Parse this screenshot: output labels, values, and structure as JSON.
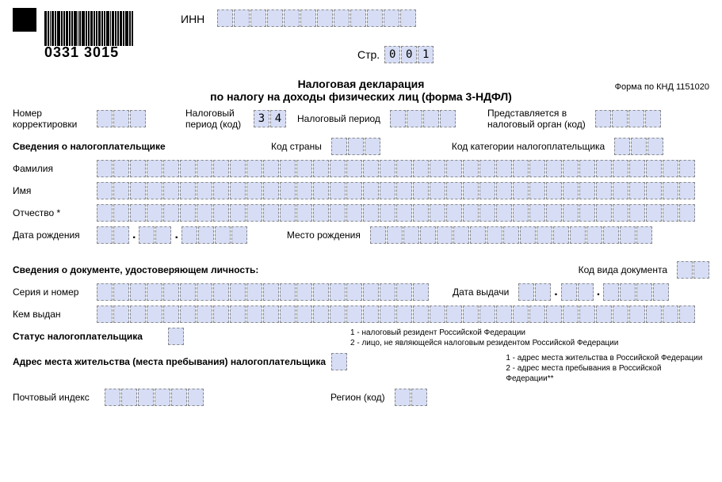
{
  "colors": {
    "cell_bg": "#d6ddf5",
    "cell_border": "#888888",
    "text": "#000000",
    "bg": "#ffffff"
  },
  "barcode": {
    "number": "0331 3015"
  },
  "header": {
    "inn_label": "ИНН",
    "page_label": "Стр.",
    "page_value": [
      "0",
      "0",
      "1"
    ]
  },
  "title": {
    "line1": "Налоговая декларация",
    "line2": "по налогу на доходы физических лиц (форма 3-НДФЛ)",
    "form_code": "Форма по КНД 1151020"
  },
  "row_codes": {
    "correction_label": "Номер\nкорректировки",
    "tax_period_code_label": "Налоговый\nпериод (код)",
    "tax_period_code_value": [
      "3",
      "4"
    ],
    "tax_period_label": "Налоговый период",
    "submit_to_label": "Представляется в\nналоговый орган (код)"
  },
  "taxpayer": {
    "section_label": "Сведения о налогоплательщике",
    "country_code_label": "Код страны",
    "category_code_label": "Код категории налогоплательщика",
    "surname_label": "Фамилия",
    "name_label": "Имя",
    "patronymic_label": "Отчество *",
    "dob_label": "Дата рождения",
    "pob_label": "Место рождения"
  },
  "id_doc": {
    "section_label": "Сведения о документе, удостоверяющем личность:",
    "doc_type_code_label": "Код вида документа",
    "series_number_label": "Серия и номер",
    "issue_date_label": "Дата выдачи",
    "issued_by_label": "Кем выдан"
  },
  "status": {
    "label": "Статус налогоплательщика",
    "note1": "1 - налоговый резидент Российской Федерации",
    "note2": "2 - лицо, не являющейся налоговым резидентом Российской Федерации"
  },
  "address": {
    "label": "Адрес места жительства (места пребывания) налогоплательщика",
    "note1": "1 - адрес места жительства в Российской Федерации",
    "note2": "2 - адрес места пребывания в Российской Федерации**",
    "postcode_label": "Почтовый индекс",
    "region_label": "Регион  (код)"
  },
  "cell_counts": {
    "inn": 12,
    "correction": 3,
    "tax_period_code": 2,
    "tax_period": 4,
    "submit_to": 4,
    "country": 3,
    "category": 3,
    "surname": 36,
    "name": 36,
    "patronymic": 36,
    "dob_d": 2,
    "dob_m": 2,
    "dob_y": 4,
    "pob": 17,
    "doc_type": 2,
    "series": 20,
    "issue_d": 2,
    "issue_m": 2,
    "issue_y": 4,
    "issued_by": 36,
    "status": 1,
    "addr_type": 1,
    "postcode": 6,
    "region": 2
  }
}
